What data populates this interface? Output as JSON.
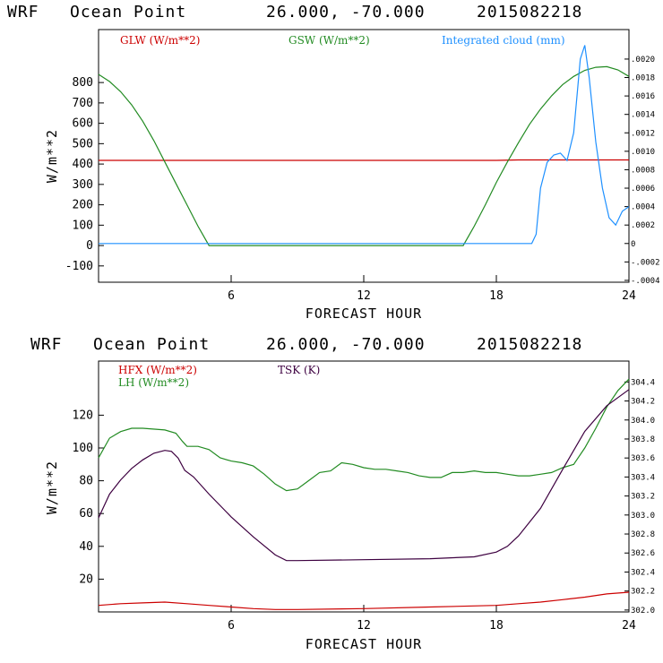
{
  "colors": {
    "red": "#cc0000",
    "green": "#228b22",
    "blue": "#1e90ff",
    "purple": "#3d0040",
    "frame": "#000000"
  },
  "chart_data": [
    {
      "type": "line",
      "title": {
        "model": "WRF",
        "location": "Ocean Point",
        "coords": "26.000, -70.000",
        "date": "2015082218"
      },
      "xlabel": "FORECAST HOUR",
      "ylabel": "W/m**2",
      "xlim": [
        0,
        24
      ],
      "ylim": [
        -180,
        1060
      ],
      "y2lim": [
        -0.00042,
        0.00232
      ],
      "xticks": [
        6,
        12,
        18,
        24
      ],
      "yticks": [
        -100,
        0,
        100,
        200,
        300,
        400,
        500,
        600,
        700,
        800
      ],
      "ytick_labels": [
        "-100",
        "0",
        "100",
        "200",
        "300",
        "400",
        "500",
        "600",
        "700",
        "800"
      ],
      "y2ticks": [
        -0.0004,
        -0.0002,
        0,
        0.0002,
        0.0004,
        0.0006,
        0.0008,
        0.001,
        0.0012,
        0.0014,
        0.0016,
        0.0018,
        0.002
      ],
      "y2tick_labels": [
        "-.0004",
        "-.0002",
        "0",
        ".0002",
        ".0004",
        ".0006",
        ".0008",
        ".0010",
        ".0012",
        ".0014",
        ".0016",
        ".0018",
        ".0020"
      ],
      "series": [
        {
          "name": "GLW (W/m**2)",
          "color": "#cc0000",
          "axis": "left",
          "x": [
            0,
            6,
            12,
            18,
            19,
            24
          ],
          "y": [
            418,
            418,
            418,
            418,
            420,
            420
          ]
        },
        {
          "name": "GSW (W/m**2)",
          "color": "#228b22",
          "axis": "left",
          "x": [
            0,
            0.5,
            1,
            1.5,
            2,
            2.5,
            3,
            3.5,
            4,
            4.5,
            5,
            6,
            10,
            16.5,
            17,
            17.5,
            18,
            18.5,
            19,
            19.5,
            20,
            20.5,
            21,
            21.5,
            22,
            22.5,
            23,
            23.5,
            24
          ],
          "y": [
            840,
            805,
            755,
            690,
            610,
            515,
            410,
            305,
            200,
            95,
            0,
            0,
            0,
            0,
            95,
            200,
            310,
            410,
            505,
            595,
            670,
            735,
            790,
            830,
            860,
            875,
            878,
            862,
            830
          ]
        },
        {
          "name": "Integrated cloud (mm)",
          "color": "#1e90ff",
          "axis": "right",
          "x": [
            0,
            6,
            12,
            18,
            19.6,
            19.8,
            20,
            20.3,
            20.6,
            20.9,
            21.2,
            21.5,
            21.8,
            22,
            22.2,
            22.5,
            22.8,
            23.1,
            23.4,
            23.7,
            24
          ],
          "y": [
            0,
            0,
            0,
            0,
            0,
            0.0001,
            0.0006,
            0.00088,
            0.00096,
            0.00098,
            0.0009,
            0.0012,
            0.002,
            0.00215,
            0.0018,
            0.0011,
            0.0006,
            0.00028,
            0.0002,
            0.00035,
            0.0004
          ]
        }
      ]
    },
    {
      "type": "line",
      "title": {
        "model": "WRF",
        "location": "Ocean Point",
        "coords": "26.000, -70.000",
        "date": "2015082218"
      },
      "xlabel": "FORECAST HOUR",
      "ylabel": "W/m**2",
      "xlim": [
        0,
        24
      ],
      "ylim": [
        0,
        153
      ],
      "y2lim": [
        301.98,
        304.62
      ],
      "xticks": [
        6,
        12,
        18,
        24
      ],
      "yticks": [
        20,
        40,
        60,
        80,
        100,
        120
      ],
      "ytick_labels": [
        "20",
        "40",
        "60",
        "80",
        "100",
        "120"
      ],
      "y2ticks": [
        302.0,
        302.2,
        302.4,
        302.6,
        302.8,
        303.0,
        303.2,
        303.4,
        303.6,
        303.8,
        304.0,
        304.2,
        304.4
      ],
      "y2tick_labels": [
        "302.0",
        "302.2",
        "302.4",
        "302.6",
        "302.8",
        "303.0",
        "303.2",
        "303.4",
        "303.6",
        "303.8",
        "304.0",
        "304.2",
        "304.4"
      ],
      "series": [
        {
          "name": "HFX (W/m**2)",
          "color": "#cc0000",
          "axis": "left",
          "x": [
            0,
            1,
            2,
            3,
            4,
            5,
            6,
            7,
            8,
            9,
            12,
            15,
            18,
            19,
            20,
            21,
            22,
            23,
            24
          ],
          "y": [
            4,
            5,
            5.5,
            6,
            5,
            4,
            3,
            2,
            1.5,
            1.5,
            2,
            3,
            4,
            5,
            6,
            7.5,
            9,
            11,
            12
          ]
        },
        {
          "name": "LH (W/m**2)",
          "color": "#228b22",
          "axis": "left",
          "x": [
            0,
            0.5,
            1,
            1.5,
            2,
            3,
            3.5,
            3.8,
            4,
            4.5,
            5,
            5.5,
            6,
            6.5,
            7,
            7.5,
            8,
            8.5,
            9,
            9.5,
            10,
            10.5,
            11,
            11.5,
            12,
            12.5,
            13,
            13.5,
            14,
            14.5,
            15,
            15.5,
            16,
            16.5,
            17,
            17.5,
            18,
            18.5,
            19,
            19.5,
            20,
            20.5,
            21,
            21.5,
            22,
            22.5,
            23,
            23.5,
            24
          ],
          "y": [
            94,
            106,
            110,
            112,
            112,
            111,
            109,
            104,
            101,
            101,
            99,
            94,
            92,
            91,
            89,
            84,
            78,
            74,
            75,
            80,
            85,
            86,
            91,
            90,
            88,
            87,
            87,
            86,
            85,
            83,
            82,
            82,
            85,
            85,
            86,
            85,
            85,
            84,
            83,
            83,
            84,
            85,
            88,
            90,
            100,
            112,
            125,
            135,
            142
          ]
        },
        {
          "name": "TSK (K)",
          "color": "#3d0040",
          "axis": "right",
          "x": [
            0,
            0.5,
            1,
            1.5,
            2,
            2.5,
            3,
            3.3,
            3.6,
            3.9,
            4.3,
            5,
            6,
            7,
            8,
            8.5,
            9,
            12,
            15,
            17,
            18,
            18.5,
            19,
            20,
            21,
            22,
            23,
            24
          ],
          "y": [
            302.97,
            303.22,
            303.37,
            303.49,
            303.58,
            303.65,
            303.68,
            303.67,
            303.6,
            303.47,
            303.4,
            303.22,
            302.98,
            302.77,
            302.58,
            302.52,
            302.52,
            302.53,
            302.54,
            302.56,
            302.61,
            302.67,
            302.78,
            303.07,
            303.48,
            303.88,
            304.15,
            304.32
          ]
        }
      ]
    }
  ]
}
